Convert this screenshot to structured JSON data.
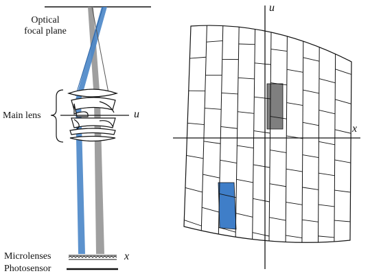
{
  "labels": {
    "optical_focal_plane_line1": "Optical",
    "optical_focal_plane_line2": "focal plane",
    "main_lens": "Main lens",
    "microlenses": "Microlenses",
    "photosensor": "Photosensor",
    "axis_u_left": "u",
    "axis_x_left": "x",
    "axis_u_right": "u",
    "axis_x_right": "x"
  },
  "colors": {
    "blue_ray": "#4a86c8",
    "gray_ray": "#8e8e8e",
    "blue_cell": "#3f7ec8",
    "gray_cell": "#7f7f7f",
    "ink": "#111111"
  },
  "grid": {
    "columns": 10,
    "highlighted_cells": [
      {
        "name": "gray-ray-cell",
        "column": 5,
        "row": 2,
        "color": "gray"
      },
      {
        "name": "blue-ray-cell",
        "column": 2,
        "row": 5,
        "color": "blue"
      }
    ]
  }
}
